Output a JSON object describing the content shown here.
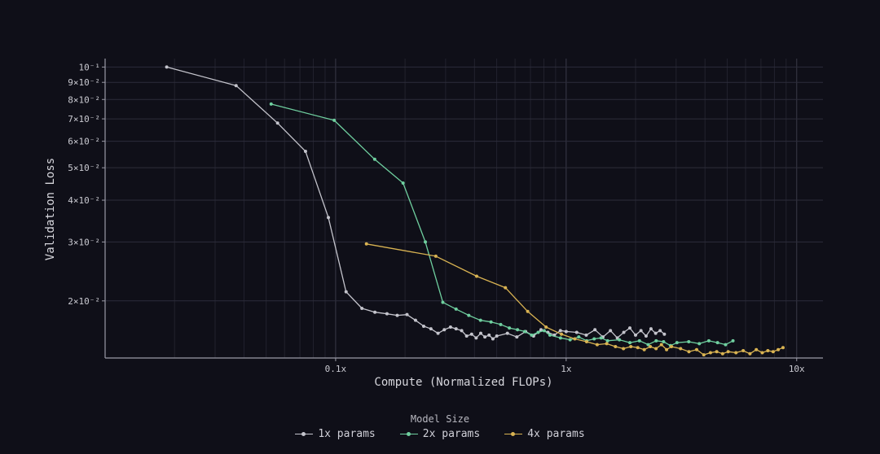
{
  "chart_data": {
    "type": "line",
    "title": "",
    "xlabel": "Compute (Normalized FLOPs)",
    "ylabel": "Validation Loss",
    "x_scale": "log",
    "y_scale": "log",
    "xlim": [
      0.01,
      13
    ],
    "ylim": [
      0.0135,
      0.106
    ],
    "x_ticks": [
      {
        "value": 0.1,
        "label": "0.1x"
      },
      {
        "value": 1,
        "label": "1x"
      },
      {
        "value": 10,
        "label": "10x"
      }
    ],
    "y_ticks": [
      {
        "value": 0.1,
        "label": "10⁻¹"
      },
      {
        "value": 0.09,
        "label": "9×10⁻²"
      },
      {
        "value": 0.08,
        "label": "8×10⁻²"
      },
      {
        "value": 0.07,
        "label": "7×10⁻²"
      },
      {
        "value": 0.06,
        "label": "6×10⁻²"
      },
      {
        "value": 0.05,
        "label": "5×10⁻²"
      },
      {
        "value": 0.04,
        "label": "4×10⁻²"
      },
      {
        "value": 0.03,
        "label": "3×10⁻²"
      },
      {
        "value": 0.02,
        "label": "2×10⁻²"
      }
    ],
    "grid": true,
    "legend_title": "Model Size",
    "legend_position": "bottom-center",
    "series": [
      {
        "name": "1x params",
        "color": "#c4c4cc",
        "x": [
          0.0185,
          0.037,
          0.056,
          0.074,
          0.093,
          0.111,
          0.13,
          0.148,
          0.167,
          0.185,
          0.204,
          0.222,
          0.241,
          0.259,
          0.278,
          0.296,
          0.315,
          0.333,
          0.352,
          0.37,
          0.389,
          0.407,
          0.426,
          0.444,
          0.463,
          0.481,
          0.5,
          0.556,
          0.611,
          0.667,
          0.722,
          0.778,
          0.833,
          0.889,
          0.944,
          1.0,
          1.111,
          1.222,
          1.333,
          1.444,
          1.556,
          1.667,
          1.778,
          1.889,
          2.0,
          2.111,
          2.222,
          2.333,
          2.444,
          2.556,
          2.667
        ],
        "y": [
          0.1,
          0.088,
          0.068,
          0.056,
          0.0355,
          0.0213,
          0.019,
          0.0185,
          0.0183,
          0.0181,
          0.0182,
          0.0175,
          0.0168,
          0.0165,
          0.016,
          0.0164,
          0.0167,
          0.0165,
          0.0163,
          0.0157,
          0.0159,
          0.0155,
          0.016,
          0.0156,
          0.0158,
          0.0154,
          0.0157,
          0.016,
          0.0156,
          0.0162,
          0.0157,
          0.0164,
          0.0161,
          0.0158,
          0.0163,
          0.0162,
          0.0161,
          0.0158,
          0.0164,
          0.0156,
          0.0163,
          0.0155,
          0.0161,
          0.0166,
          0.0158,
          0.0163,
          0.0157,
          0.0165,
          0.016,
          0.0163,
          0.0159
        ]
      },
      {
        "name": "2x params",
        "color": "#6fcf9f",
        "x": [
          0.0525,
          0.0986,
          0.1477,
          0.1961,
          0.245,
          0.2917,
          0.333,
          0.378,
          0.425,
          0.472,
          0.52,
          0.567,
          0.615,
          0.661,
          0.708,
          0.756,
          0.803,
          0.85,
          0.945,
          1.04,
          1.134,
          1.228,
          1.323,
          1.417,
          1.512,
          1.701,
          1.89,
          2.079,
          2.268,
          2.457,
          2.646,
          2.835,
          3.024,
          3.402,
          3.78,
          4.158,
          4.536,
          4.914,
          5.292
        ],
        "y": [
          0.0775,
          0.0693,
          0.053,
          0.045,
          0.03,
          0.0198,
          0.0189,
          0.0181,
          0.0175,
          0.0173,
          0.017,
          0.0166,
          0.0164,
          0.0162,
          0.0158,
          0.0161,
          0.0163,
          0.0158,
          0.0155,
          0.0153,
          0.0156,
          0.0152,
          0.0154,
          0.0155,
          0.0152,
          0.0153,
          0.015,
          0.0152,
          0.0148,
          0.0152,
          0.0151,
          0.0147,
          0.015,
          0.0151,
          0.0149,
          0.0152,
          0.015,
          0.0148,
          0.0152
        ]
      },
      {
        "name": "4x params",
        "color": "#d9b352",
        "x": [
          0.136,
          0.272,
          0.409,
          0.545,
          0.681,
          0.818,
          0.954,
          1.09,
          1.227,
          1.363,
          1.499,
          1.636,
          1.772,
          1.908,
          2.045,
          2.181,
          2.317,
          2.454,
          2.59,
          2.726,
          2.863,
          3.135,
          3.408,
          3.681,
          3.953,
          4.226,
          4.498,
          4.771,
          5.044,
          5.452,
          5.861,
          6.27,
          6.679,
          7.088,
          7.496,
          7.905,
          8.314,
          8.723
        ],
        "y": [
          0.0296,
          0.0272,
          0.0237,
          0.0219,
          0.0186,
          0.0167,
          0.0159,
          0.0154,
          0.0151,
          0.0148,
          0.0149,
          0.0146,
          0.0144,
          0.0146,
          0.0145,
          0.0143,
          0.0146,
          0.0144,
          0.0148,
          0.0143,
          0.0146,
          0.0144,
          0.0141,
          0.0143,
          0.0138,
          0.014,
          0.0141,
          0.0139,
          0.0141,
          0.014,
          0.0142,
          0.0139,
          0.0143,
          0.014,
          0.0142,
          0.0141,
          0.0143,
          0.0145
        ]
      }
    ]
  }
}
